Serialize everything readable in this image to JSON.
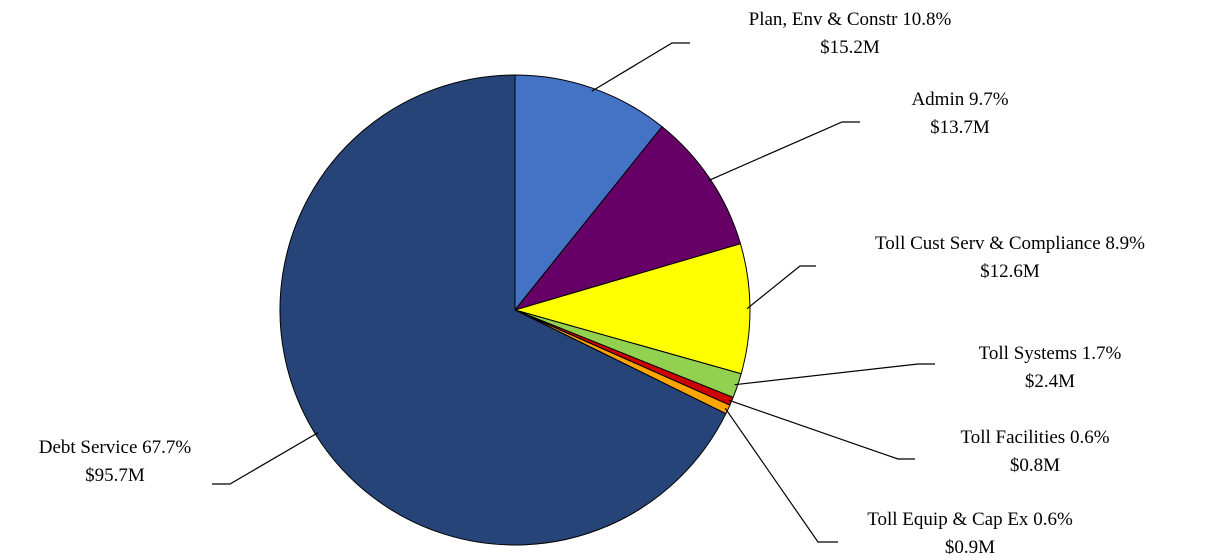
{
  "chart_data": {
    "type": "pie",
    "start_angle_deg": 0,
    "direction": "clockwise",
    "slices": [
      {
        "name": "Plan, Env & Constr",
        "percent_label": "10.8%",
        "amount_label": "$15.2M",
        "value": 15.2,
        "color": "#4472C4"
      },
      {
        "name": "Admin",
        "percent_label": "9.7%",
        "amount_label": "$13.7M",
        "value": 13.7,
        "color": "#660066"
      },
      {
        "name": "Toll Cust Serv & Compliance",
        "percent_label": "8.9%",
        "amount_label": "$12.6M",
        "value": 12.6,
        "color": "#FFFF00"
      },
      {
        "name": "Toll Systems",
        "percent_label": "1.7%",
        "amount_label": "$2.4M",
        "value": 2.4,
        "color": "#92D050"
      },
      {
        "name": "Toll Facilities",
        "percent_label": "0.6%",
        "amount_label": "$0.8M",
        "value": 0.8,
        "color": "#CC0000"
      },
      {
        "name": "Toll Equip & Cap Ex",
        "percent_label": "0.6%",
        "amount_label": "$0.9M",
        "value": 0.9,
        "color": "#FFA500"
      },
      {
        "name": "Debt Service",
        "percent_label": "67.7%",
        "amount_label": "$95.7M",
        "value": 95.7,
        "color": "#264478"
      }
    ]
  }
}
